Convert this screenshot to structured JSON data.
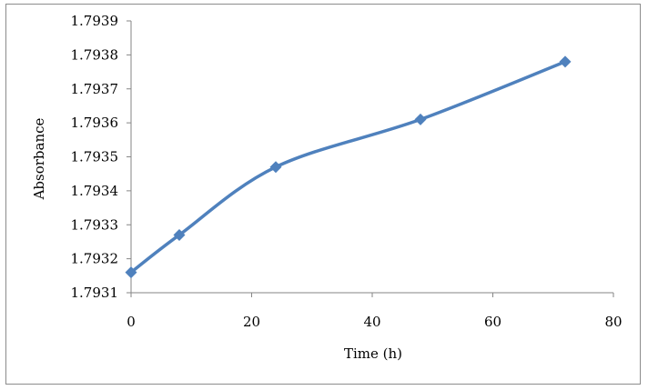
{
  "chart_data": {
    "type": "line",
    "title": "",
    "xlabel": "Time (h)",
    "ylabel": "Absorbance",
    "xlim": [
      0,
      80
    ],
    "ylim": [
      1.7931,
      1.7939
    ],
    "x_ticks": [
      "0",
      "20",
      "40",
      "60",
      "80"
    ],
    "y_ticks": [
      "1.7931",
      "1.7932",
      "1.7933",
      "1.7934",
      "1.7935",
      "1.7936",
      "1.7937",
      "1.7938",
      "1.7939"
    ],
    "grid": false,
    "legend": "none",
    "smooth": true,
    "series": [
      {
        "x": [
          0,
          8,
          24,
          48,
          72
        ],
        "y": [
          1.79316,
          1.79327,
          1.79347,
          1.79361,
          1.79378
        ],
        "color": "#4f81bd",
        "marker": "diamond"
      }
    ]
  }
}
